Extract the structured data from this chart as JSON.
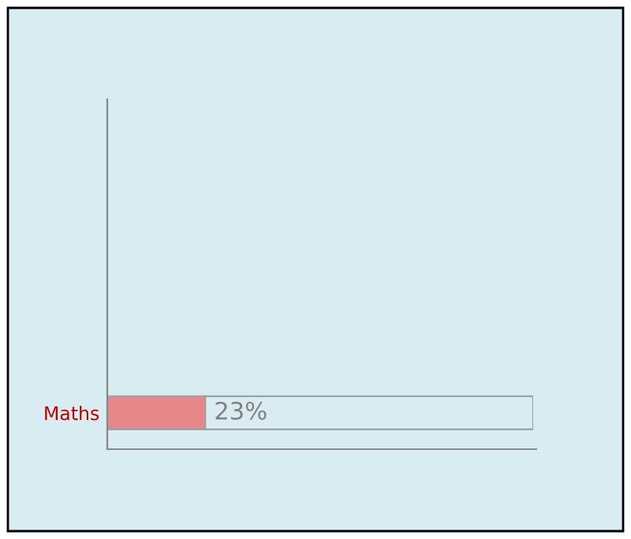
{
  "chart_data": {
    "type": "bar",
    "orientation": "horizontal",
    "stacked": true,
    "categories": [
      "Maths"
    ],
    "series": [
      {
        "color": "#e8878a",
        "values": [
          23
        ],
        "value_labels": [
          "23%"
        ]
      },
      {
        "color": "#d8ecf2",
        "values": [
          77
        ]
      }
    ],
    "tick_labels": "y"
  }
}
